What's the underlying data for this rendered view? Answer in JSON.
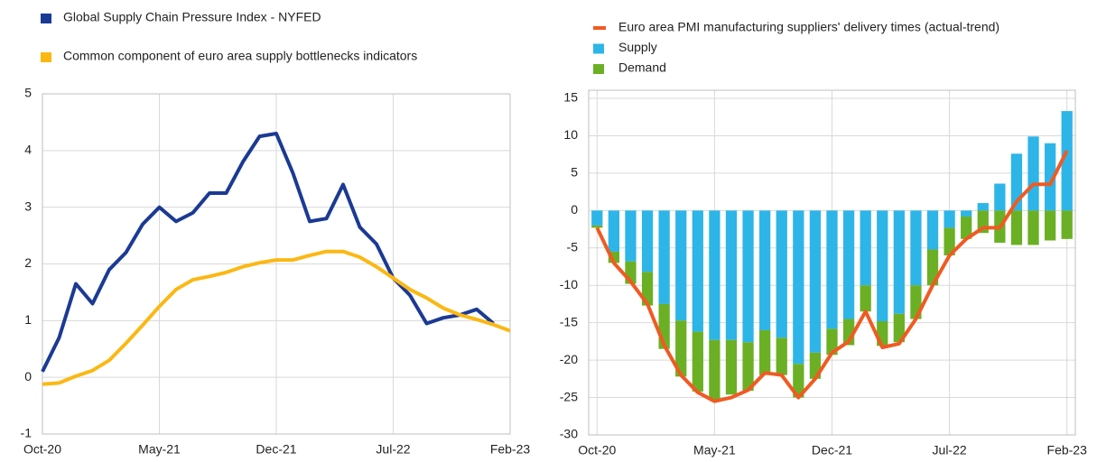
{
  "chart_data": [
    {
      "type": "line",
      "categories": [
        "Oct-20",
        null,
        null,
        null,
        null,
        null,
        null,
        "May-21",
        null,
        null,
        null,
        null,
        null,
        null,
        "Dec-21",
        null,
        null,
        null,
        null,
        null,
        null,
        "Jul-22",
        null,
        null,
        null,
        null,
        null,
        null,
        "Feb-23"
      ],
      "series": [
        {
          "name": "Global Supply Chain Pressure Index - NYFED",
          "color": "#1b3a94",
          "values": [
            0.1,
            0.7,
            1.65,
            1.3,
            1.9,
            2.2,
            2.7,
            3.0,
            2.75,
            2.9,
            3.25,
            3.25,
            3.8,
            4.25,
            4.3,
            3.6,
            2.75,
            2.8,
            3.4,
            2.65,
            2.35,
            1.75,
            1.45,
            0.95,
            1.05,
            1.1,
            1.2,
            0.95,
            null
          ]
        },
        {
          "name": "Common component of euro area supply bottlenecks indicators",
          "color": "#fbb814",
          "values": [
            -0.12,
            -0.1,
            0.02,
            0.12,
            0.3,
            0.6,
            0.92,
            1.25,
            1.55,
            1.72,
            1.78,
            1.85,
            1.95,
            2.02,
            2.07,
            2.07,
            2.15,
            2.22,
            2.22,
            2.12,
            1.95,
            1.75,
            1.55,
            1.4,
            1.22,
            1.1,
            1.02,
            0.93,
            0.82
          ]
        }
      ],
      "ylim": [
        -1,
        5
      ],
      "yticks": [
        -1,
        0,
        1,
        2,
        3,
        4,
        5
      ],
      "grid": true
    },
    {
      "type": "bar",
      "stacked": true,
      "categories": [
        "Oct-20",
        null,
        null,
        null,
        null,
        null,
        null,
        "May-21",
        null,
        null,
        null,
        null,
        null,
        null,
        "Dec-21",
        null,
        null,
        null,
        null,
        null,
        null,
        "Jul-22",
        null,
        null,
        null,
        null,
        null,
        null,
        "Feb-23"
      ],
      "series": [
        {
          "name": "Euro area PMI manufacturing suppliers' delivery times (actual-trend)",
          "type": "line",
          "color": "#f05a22",
          "values": [
            -2.3,
            -7,
            -9.5,
            -12.5,
            -18,
            -22,
            -24.3,
            -25.5,
            -25,
            -24,
            -21.7,
            -22,
            -25,
            -22.5,
            -19,
            -17.5,
            -13.5,
            -18.3,
            -17.8,
            -14.5,
            -10,
            -6,
            -3.8,
            -2.3,
            -2.3,
            1.2,
            3.5,
            3.5,
            8
          ]
        },
        {
          "name": "Supply",
          "type": "bar",
          "color": "#2db5e8",
          "values": [
            -2,
            -5.5,
            -6.8,
            -8.2,
            -12.5,
            -14.7,
            -16.2,
            -17.3,
            -17.3,
            -17.6,
            -16,
            -17,
            -20.5,
            -19,
            -15.8,
            -14.5,
            -10,
            -14.8,
            -13.8,
            -10,
            -5.2,
            -2.3,
            -0.8,
            1,
            3.6,
            7.6,
            9.9,
            9,
            13.3
          ]
        },
        {
          "name": "Demand",
          "type": "bar",
          "color": "#6bb024",
          "values": [
            -0.3,
            -1.5,
            -3,
            -4.5,
            -6,
            -7.5,
            -8,
            -8,
            -7.3,
            -6.5,
            -6,
            -5,
            -4.5,
            -3.5,
            -3.5,
            -3.5,
            -3.5,
            -3.3,
            -3.8,
            -4.5,
            -4.8,
            -3.7,
            -3,
            -3,
            -4.3,
            -4.6,
            -4.6,
            -4,
            -3.8
          ]
        }
      ],
      "ylim": [
        -30,
        15
      ],
      "yticks": [
        -30,
        -25,
        -20,
        -15,
        -10,
        -5,
        0,
        5,
        10,
        15
      ],
      "grid": true
    }
  ]
}
